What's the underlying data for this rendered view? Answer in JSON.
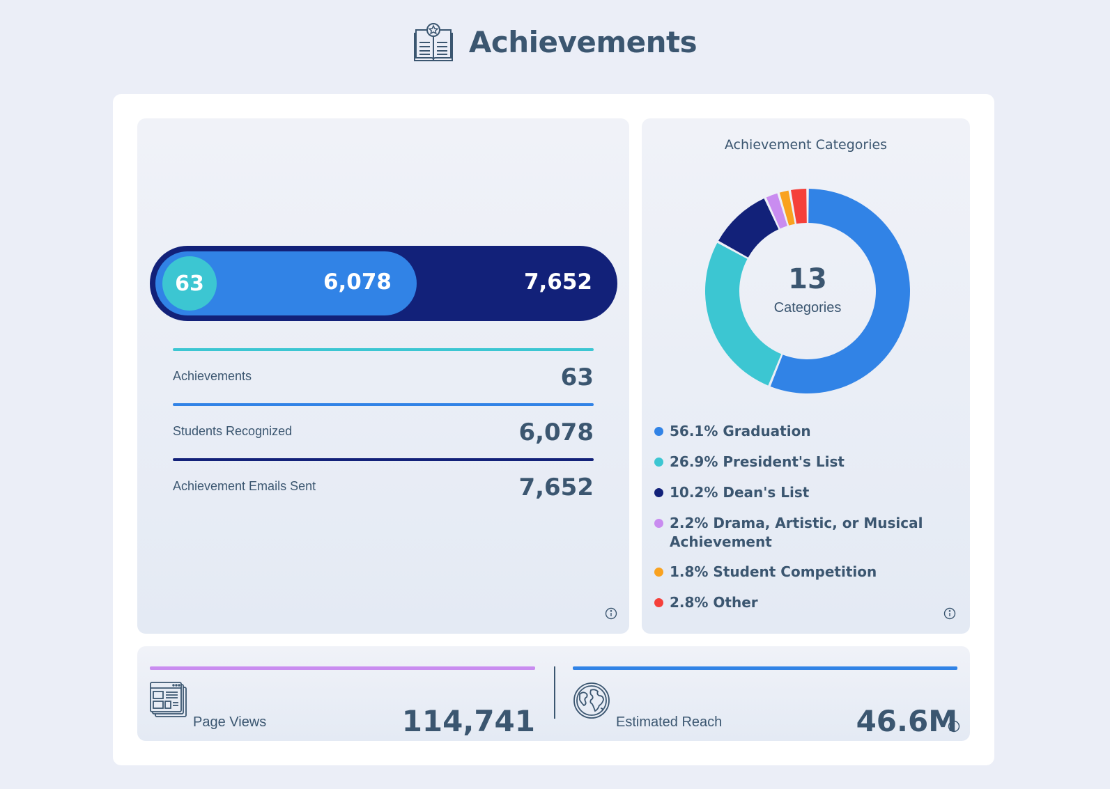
{
  "header": {
    "title": "Achievements",
    "icon": "certificate-book-icon"
  },
  "funnel": {
    "inner_value": "63",
    "mid_value": "6,078",
    "outer_value": "7,652",
    "colors": {
      "inner": "#3cc6d2",
      "mid": "#3183e6",
      "outer": "#122179"
    }
  },
  "stats": [
    {
      "label": "Achievements",
      "value": "63",
      "color": "#3cc6d2"
    },
    {
      "label": "Students Recognized",
      "value": "6,078",
      "color": "#3183e6"
    },
    {
      "label": "Achievement Emails Sent",
      "value": "7,652",
      "color": "#122179"
    }
  ],
  "categories_panel": {
    "title": "Achievement Categories",
    "center_number": "13",
    "center_label": "Categories"
  },
  "chart_data": {
    "type": "pie",
    "variant": "donut",
    "categories": [
      "Graduation",
      "President's List",
      "Dean's List",
      "Drama, Artistic, or Musical Achievement",
      "Student Competition",
      "Other"
    ],
    "values": [
      56.1,
      26.9,
      10.2,
      2.2,
      1.8,
      2.8
    ],
    "colors": [
      "#3183e6",
      "#3cc6d2",
      "#122179",
      "#c98cf0",
      "#f9a21f",
      "#f5403a"
    ],
    "legend_labels": [
      "56.1% Graduation",
      "26.9% President's List",
      "10.2% Dean's List",
      "2.2% Drama, Artistic, or Musical Achievement",
      "1.8% Student Competition",
      "2.8% Other"
    ]
  },
  "bottom": {
    "page_views": {
      "label": "Page Views",
      "value": "114,741",
      "color": "#c98cf0",
      "icon": "browser-windows-icon"
    },
    "reach": {
      "label": "Estimated Reach",
      "value": "46.6M",
      "color": "#3183e6",
      "icon": "globe-icon"
    }
  }
}
